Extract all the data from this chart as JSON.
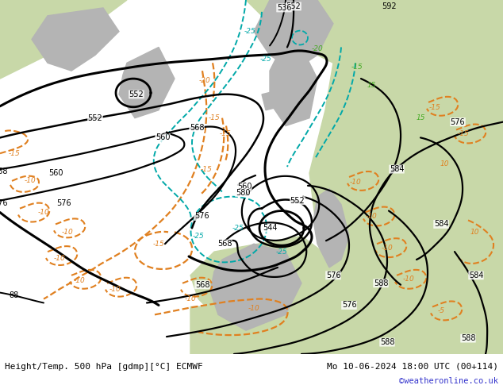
{
  "title_left": "Height/Temp. 500 hPa [gdmp][°C] ECMWF",
  "title_right": "Mo 10-06-2024 18:00 UTC (00+114)",
  "watermark": "©weatheronline.co.uk",
  "fig_width": 6.34,
  "fig_height": 4.9,
  "dpi": 100,
  "bg_light_gray": "#d8d8d8",
  "bg_green": "#c8d8a8",
  "watermark_color": "#3333cc"
}
